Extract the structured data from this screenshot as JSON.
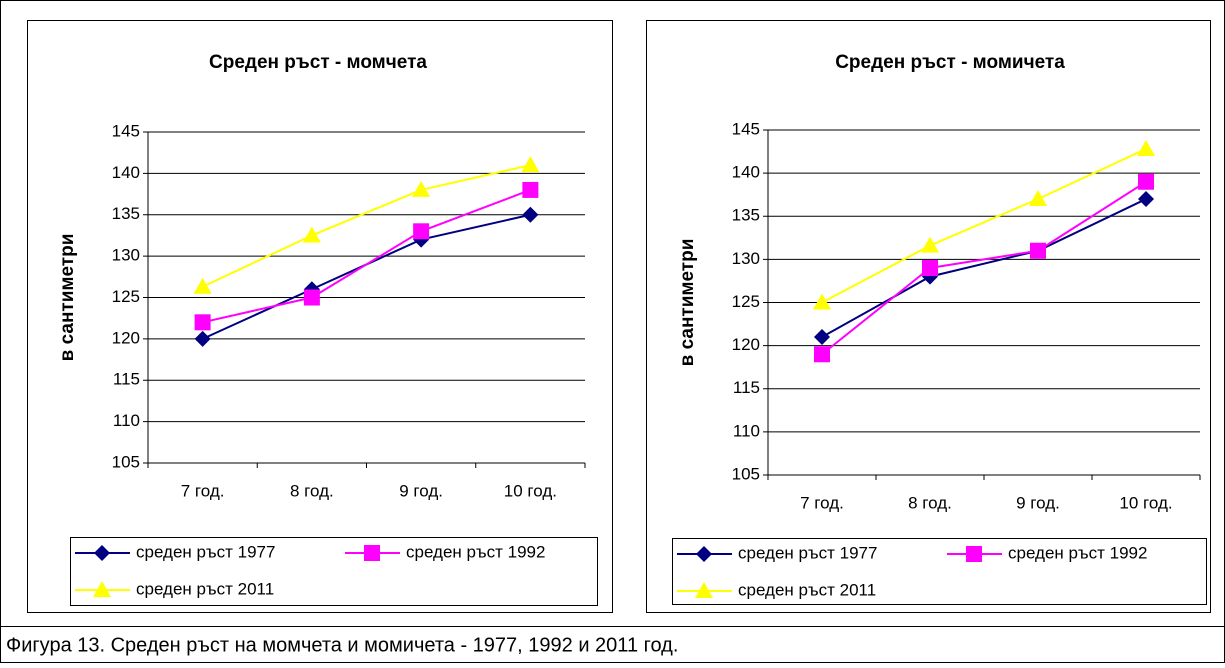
{
  "chart_data": [
    {
      "type": "line",
      "title": "Среден ръст - момчета",
      "y_label": "в сантиметри",
      "categories": [
        "7 год.",
        "8 год.",
        "9 год.",
        "10 год."
      ],
      "series": [
        {
          "name": "среден ръст 1977",
          "color": "#000080",
          "marker": "diamond",
          "values": [
            120,
            126,
            132,
            135
          ]
        },
        {
          "name": "среден ръст 1992",
          "color": "#FF00FF",
          "marker": "square",
          "values": [
            122,
            125,
            133,
            138
          ]
        },
        {
          "name": "среден ръст 2011",
          "color": "#FFFF00",
          "marker": "triangle",
          "values": [
            126.3,
            132.5,
            138,
            141
          ]
        }
      ],
      "ylim": [
        105,
        145
      ],
      "yticks": [
        105,
        110,
        115,
        120,
        125,
        130,
        135,
        140,
        145
      ],
      "grid": true,
      "legend": "bottom"
    },
    {
      "type": "line",
      "title": "Среден ръст - момичета",
      "y_label": "в сантиметри",
      "categories": [
        "7 год.",
        "8 год.",
        "9 год.",
        "10 год."
      ],
      "series": [
        {
          "name": "среден ръст 1977",
          "color": "#000080",
          "marker": "diamond",
          "values": [
            121,
            128,
            131,
            137
          ]
        },
        {
          "name": "среден ръст 1992",
          "color": "#FF00FF",
          "marker": "square",
          "values": [
            119,
            129,
            131,
            139
          ]
        },
        {
          "name": "среден ръст 2011",
          "color": "#FFFF00",
          "marker": "triangle",
          "values": [
            125,
            131.6,
            137,
            142.8
          ]
        }
      ],
      "ylim": [
        105,
        145
      ],
      "yticks": [
        105,
        110,
        115,
        120,
        125,
        130,
        135,
        140,
        145
      ],
      "grid": true,
      "legend": "bottom"
    }
  ],
  "caption": "Фигура 13. Среден ръст на момчета и момичета - 1977, 1992 и 2011 год."
}
